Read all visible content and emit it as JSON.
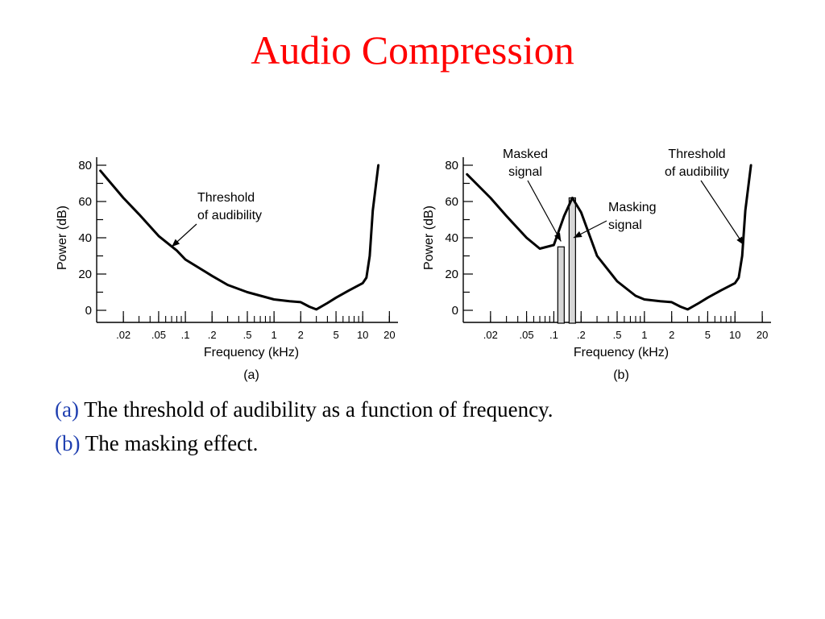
{
  "slide": {
    "title": "Audio Compression",
    "title_color": "#ff0000",
    "caption_marker_color": "#1f3fb0"
  },
  "captions": [
    {
      "marker": "(a)",
      "text": " The threshold of audibility as a function of frequency."
    },
    {
      "marker": "(b)",
      "text": " The masking effect."
    }
  ],
  "chart_data": [
    {
      "type": "line",
      "panel_label": "(a)",
      "xlabel": "Frequency (kHz)",
      "ylabel": "Power (dB)",
      "x_scale": "log",
      "xlim": [
        0.01,
        25
      ],
      "ylim": [
        0,
        80
      ],
      "x_ticks": [
        ".02",
        ".05",
        ".1",
        ".2",
        ".5",
        "1",
        "2",
        "5",
        "10",
        "20"
      ],
      "y_ticks": [
        "0",
        "20",
        "40",
        "60",
        "80"
      ],
      "grid": false,
      "series": [
        {
          "x": [
            0.011,
            0.02,
            0.03,
            0.05,
            0.08,
            0.1,
            0.2,
            0.3,
            0.5,
            1,
            1.5,
            2,
            2.5,
            3,
            4,
            5,
            7,
            10,
            11,
            12,
            13,
            15
          ],
          "y": [
            77,
            62,
            53,
            41,
            33,
            28,
            19,
            14,
            10,
            6,
            5,
            4.5,
            2,
            0.5,
            4,
            7,
            11,
            15,
            18,
            30,
            55,
            80
          ]
        }
      ],
      "annotations": [
        {
          "text": [
            "Threshold",
            "of audibility"
          ],
          "points_to": {
            "x": 0.07,
            "y": 35
          }
        }
      ]
    },
    {
      "type": "line",
      "panel_label": "(b)",
      "xlabel": "Frequency (kHz)",
      "ylabel": "Power (dB)",
      "x_scale": "log",
      "xlim": [
        0.01,
        25
      ],
      "ylim": [
        0,
        80
      ],
      "x_ticks": [
        ".02",
        ".05",
        ".1",
        ".2",
        ".5",
        "1",
        "2",
        "5",
        "10",
        "20"
      ],
      "y_ticks": [
        "0",
        "20",
        "40",
        "60",
        "80"
      ],
      "grid": false,
      "series": [
        {
          "x": [
            0.011,
            0.02,
            0.03,
            0.05,
            0.07,
            0.1,
            0.13,
            0.16,
            0.2,
            0.3,
            0.5,
            0.8,
            1,
            1.5,
            2,
            2.5,
            3,
            4,
            5,
            7,
            10,
            11,
            12,
            13,
            15
          ],
          "y": [
            75,
            62,
            52,
            40,
            34,
            36,
            52,
            62,
            54,
            30,
            16,
            8,
            6,
            5,
            4.5,
            2,
            0.5,
            4,
            7,
            11,
            15,
            18,
            30,
            55,
            80
          ]
        }
      ],
      "bars": [
        {
          "x": 0.12,
          "value": 35
        },
        {
          "x": 0.16,
          "value": 62
        }
      ],
      "annotations": [
        {
          "text": [
            "Masked",
            "signal"
          ],
          "points_to": {
            "x": 0.12,
            "y": 38
          }
        },
        {
          "text": [
            "Masking",
            "signal"
          ],
          "points_to": {
            "x": 0.165,
            "y": 40
          }
        },
        {
          "text": [
            "Threshold",
            "of audibility"
          ],
          "points_to": {
            "x": 12.5,
            "y": 36
          }
        }
      ]
    }
  ]
}
